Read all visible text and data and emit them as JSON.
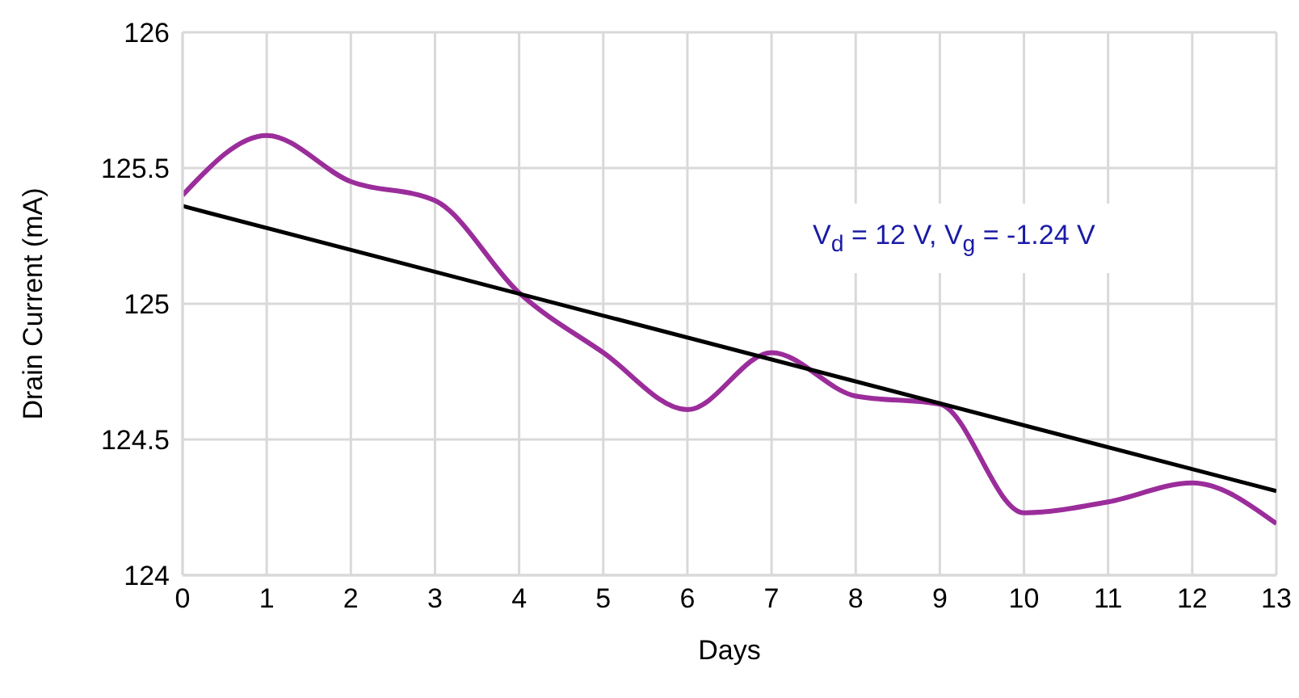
{
  "chart_data": {
    "type": "line",
    "xlabel": "Days",
    "ylabel": "Drain Current (mA)",
    "annotations": [
      "V$_{d}$ = 12 V, V$_{g}$ = -1.24 V"
    ],
    "x": [
      0,
      1,
      2,
      3,
      4,
      5,
      6,
      7,
      8,
      9,
      10,
      11,
      12,
      13
    ],
    "series": [
      {
        "color": "#9b2d9b",
        "values": [
          125.4,
          125.62,
          125.45,
          125.38,
          125.04,
          124.82,
          124.61,
          124.82,
          124.66,
          124.63,
          124.23,
          124.27,
          124.34,
          124.19
        ]
      },
      {
        "type": "line",
        "color": "#000000",
        "x": [
          0,
          13
        ],
        "values": [
          125.36,
          124.31
        ]
      }
    ],
    "xlim": [
      0,
      13
    ],
    "xticks": [
      0,
      1,
      2,
      3,
      4,
      5,
      6,
      7,
      8,
      9,
      10,
      11,
      12,
      13
    ],
    "ylim": [
      124,
      126
    ],
    "yticks": [
      124,
      124.5,
      125,
      125.5,
      126
    ],
    "grid": true,
    "marker": "none",
    "line_style": "solid"
  }
}
